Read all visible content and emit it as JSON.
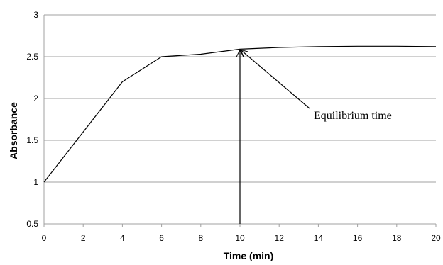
{
  "chart_data": {
    "type": "line",
    "title": "",
    "xlabel": "Time (min)",
    "ylabel": "Absorbance",
    "xlim": [
      0,
      20
    ],
    "ylim": [
      0.5,
      3
    ],
    "x_ticks": [
      "0",
      "2",
      "4",
      "6",
      "8",
      "10",
      "12",
      "14",
      "16",
      "18",
      "20"
    ],
    "y_ticks": [
      "0.5",
      "1",
      "1.5",
      "2",
      "2.5",
      "3"
    ],
    "grid": "horizontal",
    "series": [
      {
        "x": [
          0,
          4,
          6,
          8,
          10,
          12,
          14,
          16,
          18,
          20
        ],
        "y": [
          1.0,
          2.2,
          2.5,
          2.53,
          2.59,
          2.61,
          2.62,
          2.625,
          2.625,
          2.62
        ]
      }
    ],
    "annotations": [
      {
        "text": "Equilibrium time",
        "points_to": {
          "x": 10,
          "y": 2.59
        }
      }
    ],
    "vertical_marker": {
      "x": 10
    },
    "colors": {
      "line": "#000000",
      "grid": "#a0a0a0"
    }
  }
}
